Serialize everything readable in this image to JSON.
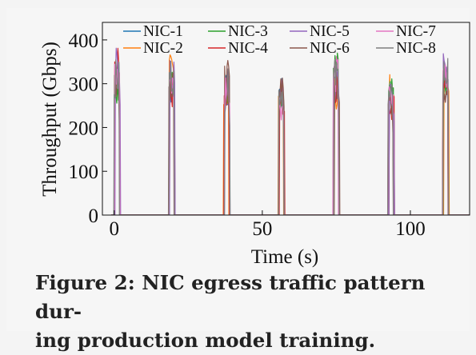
{
  "caption": {
    "line1": "Figure 2: NIC egress traffic pattern dur-",
    "line2": "ing production model training."
  },
  "chart_data": {
    "type": "line",
    "title": "",
    "xlabel": "Time (s)",
    "ylabel": "Throughput (Gbps)",
    "xlim": [
      -4,
      120
    ],
    "ylim": [
      0,
      440
    ],
    "xticks": [
      0,
      50,
      100
    ],
    "yticks": [
      0,
      100,
      200,
      300,
      400
    ],
    "grid": false,
    "legend_position": "top",
    "series": [
      {
        "name": "NIC-1",
        "color": "#1f77b4"
      },
      {
        "name": "NIC-2",
        "color": "#ff7f0e"
      },
      {
        "name": "NIC-3",
        "color": "#2ca02c"
      },
      {
        "name": "NIC-4",
        "color": "#d62728"
      },
      {
        "name": "NIC-5",
        "color": "#9467bd"
      },
      {
        "name": "NIC-6",
        "color": "#8c564b"
      },
      {
        "name": "NIC-7",
        "color": "#e377c2"
      },
      {
        "name": "NIC-8",
        "color": "#7f7f7f"
      }
    ],
    "bursts": [
      {
        "start": 0.2,
        "end": 1.8,
        "peak": 390
      },
      {
        "start": 18.7,
        "end": 20.3,
        "peak": 385
      },
      {
        "start": 37.2,
        "end": 38.8,
        "peak": 356
      },
      {
        "start": 55.7,
        "end": 57.3,
        "peak": 350
      },
      {
        "start": 74.2,
        "end": 75.8,
        "peak": 380
      },
      {
        "start": 92.7,
        "end": 94.3,
        "peak": 343
      },
      {
        "start": 111.2,
        "end": 112.8,
        "peak": 392
      }
    ]
  }
}
